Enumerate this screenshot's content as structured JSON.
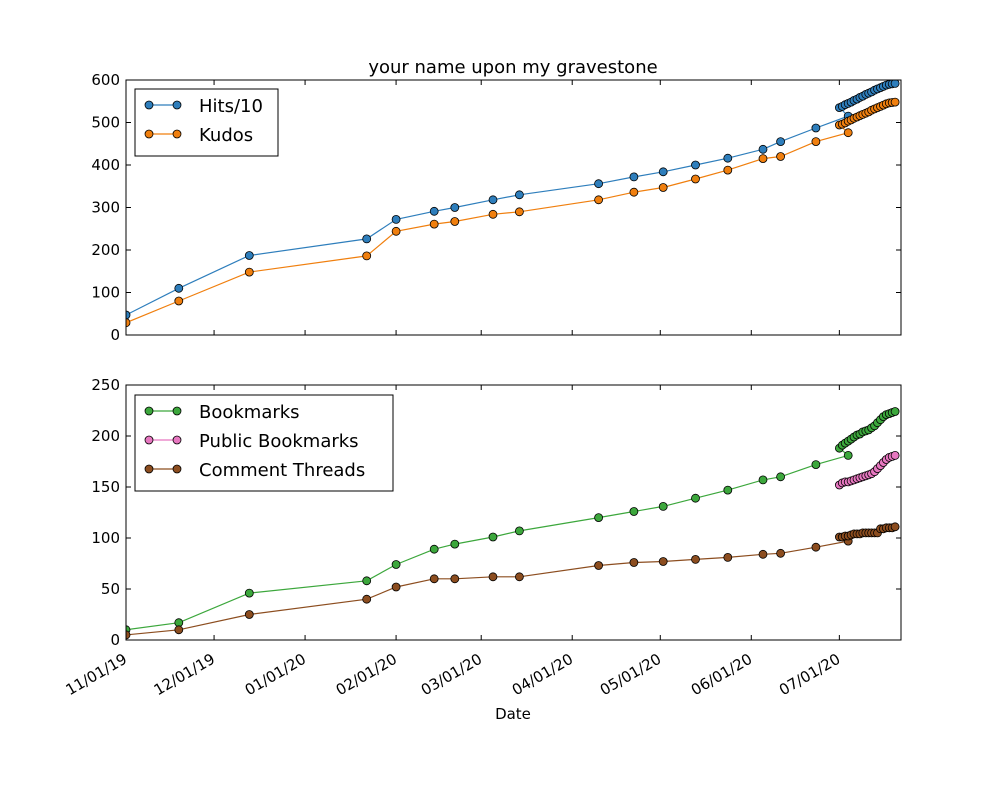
{
  "chart_data": [
    {
      "type": "line",
      "title": "your name upon my gravestone",
      "xlabel": "",
      "ylabel": "",
      "ylim": [
        0,
        600
      ],
      "yticks": [
        0,
        100,
        200,
        300,
        400,
        500,
        600
      ],
      "xlim": [
        "2019-11-01",
        "2020-07-22"
      ],
      "legend": "top-left",
      "grid": false,
      "series": [
        {
          "name": "Hits/10",
          "color": "#2e7ebc",
          "points": [
            [
              "2019-11-01",
              47
            ],
            [
              "2019-11-19",
              110
            ],
            [
              "2019-12-13",
              187
            ],
            [
              "2020-01-22",
              226
            ],
            [
              "2020-02-01",
              272
            ],
            [
              "2020-02-14",
              291
            ],
            [
              "2020-02-21",
              300
            ],
            [
              "2020-03-05",
              318
            ],
            [
              "2020-03-14",
              330
            ],
            [
              "2020-04-10",
              356
            ],
            [
              "2020-04-22",
              372
            ],
            [
              "2020-05-02",
              384
            ],
            [
              "2020-05-13",
              400
            ],
            [
              "2020-05-24",
              416
            ],
            [
              "2020-06-05",
              437
            ],
            [
              "2020-06-11",
              455
            ],
            [
              "2020-06-23",
              487
            ],
            [
              "2020-07-04",
              515
            ],
            [
              "2020-07-01",
              535
            ],
            [
              "2020-07-02",
              538
            ],
            [
              "2020-07-03",
              542
            ],
            [
              "2020-07-04",
              545
            ],
            [
              "2020-07-05",
              548
            ],
            [
              "2020-07-06",
              552
            ],
            [
              "2020-07-07",
              555
            ],
            [
              "2020-07-08",
              559
            ],
            [
              "2020-07-09",
              562
            ],
            [
              "2020-07-10",
              566
            ],
            [
              "2020-07-11",
              569
            ],
            [
              "2020-07-12",
              572
            ],
            [
              "2020-07-13",
              576
            ],
            [
              "2020-07-14",
              579
            ],
            [
              "2020-07-15",
              582
            ],
            [
              "2020-07-16",
              585
            ],
            [
              "2020-07-17",
              588
            ],
            [
              "2020-07-18",
              590
            ],
            [
              "2020-07-19",
              591
            ],
            [
              "2020-07-20",
              592
            ]
          ]
        },
        {
          "name": "Kudos",
          "color": "#f07f0e",
          "points": [
            [
              "2019-11-01",
              29
            ],
            [
              "2019-11-19",
              80
            ],
            [
              "2019-12-13",
              148
            ],
            [
              "2020-01-22",
              186
            ],
            [
              "2020-02-01",
              244
            ],
            [
              "2020-02-14",
              261
            ],
            [
              "2020-02-21",
              267
            ],
            [
              "2020-03-05",
              284
            ],
            [
              "2020-03-14",
              290
            ],
            [
              "2020-04-10",
              318
            ],
            [
              "2020-04-22",
              336
            ],
            [
              "2020-05-02",
              347
            ],
            [
              "2020-05-13",
              367
            ],
            [
              "2020-05-24",
              388
            ],
            [
              "2020-06-05",
              415
            ],
            [
              "2020-06-11",
              420
            ],
            [
              "2020-06-23",
              455
            ],
            [
              "2020-07-04",
              476
            ],
            [
              "2020-07-01",
              494
            ],
            [
              "2020-07-02",
              496
            ],
            [
              "2020-07-03",
              499
            ],
            [
              "2020-07-04",
              503
            ],
            [
              "2020-07-05",
              506
            ],
            [
              "2020-07-06",
              510
            ],
            [
              "2020-07-07",
              513
            ],
            [
              "2020-07-08",
              516
            ],
            [
              "2020-07-09",
              519
            ],
            [
              "2020-07-10",
              522
            ],
            [
              "2020-07-11",
              525
            ],
            [
              "2020-07-12",
              529
            ],
            [
              "2020-07-13",
              532
            ],
            [
              "2020-07-14",
              535
            ],
            [
              "2020-07-15",
              538
            ],
            [
              "2020-07-16",
              541
            ],
            [
              "2020-07-17",
              544
            ],
            [
              "2020-07-18",
              546
            ],
            [
              "2020-07-19",
              547
            ],
            [
              "2020-07-20",
              548
            ]
          ]
        }
      ]
    },
    {
      "type": "line",
      "title": "",
      "xlabel": "Date",
      "ylabel": "",
      "ylim": [
        0,
        250
      ],
      "yticks": [
        0,
        50,
        100,
        150,
        200,
        250
      ],
      "xlim": [
        "2019-11-01",
        "2020-07-22"
      ],
      "xticks": [
        "11/01/19",
        "12/01/19",
        "01/01/20",
        "02/01/20",
        "03/01/20",
        "04/01/20",
        "05/01/20",
        "06/01/20",
        "07/01/20"
      ],
      "legend": "top-left",
      "grid": false,
      "series": [
        {
          "name": "Bookmarks",
          "color": "#3ca73c",
          "points": [
            [
              "2019-11-01",
              10
            ],
            [
              "2019-11-19",
              17
            ],
            [
              "2019-12-13",
              46
            ],
            [
              "2020-01-22",
              58
            ],
            [
              "2020-02-01",
              74
            ],
            [
              "2020-02-14",
              89
            ],
            [
              "2020-02-21",
              94
            ],
            [
              "2020-03-05",
              101
            ],
            [
              "2020-03-14",
              107
            ],
            [
              "2020-04-10",
              120
            ],
            [
              "2020-04-22",
              126
            ],
            [
              "2020-05-02",
              131
            ],
            [
              "2020-05-13",
              139
            ],
            [
              "2020-05-24",
              147
            ],
            [
              "2020-06-05",
              157
            ],
            [
              "2020-06-11",
              160
            ],
            [
              "2020-06-23",
              172
            ],
            [
              "2020-07-04",
              181
            ],
            [
              "2020-07-01",
              188
            ],
            [
              "2020-07-02",
              191
            ],
            [
              "2020-07-03",
              193
            ],
            [
              "2020-07-04",
              195
            ],
            [
              "2020-07-05",
              197
            ],
            [
              "2020-07-06",
              199
            ],
            [
              "2020-07-07",
              201
            ],
            [
              "2020-07-08",
              202
            ],
            [
              "2020-07-09",
              204
            ],
            [
              "2020-07-10",
              205
            ],
            [
              "2020-07-11",
              206
            ],
            [
              "2020-07-12",
              208
            ],
            [
              "2020-07-13",
              210
            ],
            [
              "2020-07-14",
              213
            ],
            [
              "2020-07-15",
              216
            ],
            [
              "2020-07-16",
              219
            ],
            [
              "2020-07-17",
              221
            ],
            [
              "2020-07-18",
              222
            ],
            [
              "2020-07-19",
              223
            ],
            [
              "2020-07-20",
              224
            ]
          ]
        },
        {
          "name": "Public Bookmarks",
          "color": "#e777c0",
          "points": [
            [
              "2020-07-01",
              152
            ],
            [
              "2020-07-02",
              154
            ],
            [
              "2020-07-03",
              155
            ],
            [
              "2020-07-04",
              155
            ],
            [
              "2020-07-05",
              156
            ],
            [
              "2020-07-06",
              157
            ],
            [
              "2020-07-07",
              158
            ],
            [
              "2020-07-08",
              159
            ],
            [
              "2020-07-09",
              160
            ],
            [
              "2020-07-10",
              161
            ],
            [
              "2020-07-11",
              162
            ],
            [
              "2020-07-12",
              163
            ],
            [
              "2020-07-13",
              165
            ],
            [
              "2020-07-14",
              168
            ],
            [
              "2020-07-15",
              171
            ],
            [
              "2020-07-16",
              174
            ],
            [
              "2020-07-17",
              177
            ],
            [
              "2020-07-18",
              179
            ],
            [
              "2020-07-19",
              180
            ],
            [
              "2020-07-20",
              181
            ]
          ]
        },
        {
          "name": "Comment Threads",
          "color": "#8c4d1f",
          "points": [
            [
              "2019-11-01",
              5
            ],
            [
              "2019-11-19",
              10
            ],
            [
              "2019-12-13",
              25
            ],
            [
              "2020-01-22",
              40
            ],
            [
              "2020-02-01",
              52
            ],
            [
              "2020-02-14",
              60
            ],
            [
              "2020-02-21",
              60
            ],
            [
              "2020-03-05",
              62
            ],
            [
              "2020-03-14",
              62
            ],
            [
              "2020-04-10",
              73
            ],
            [
              "2020-04-22",
              76
            ],
            [
              "2020-05-02",
              77
            ],
            [
              "2020-05-13",
              79
            ],
            [
              "2020-05-24",
              81
            ],
            [
              "2020-06-05",
              84
            ],
            [
              "2020-06-11",
              85
            ],
            [
              "2020-06-23",
              91
            ],
            [
              "2020-07-04",
              97
            ],
            [
              "2020-07-01",
              101
            ],
            [
              "2020-07-02",
              101
            ],
            [
              "2020-07-03",
              102
            ],
            [
              "2020-07-04",
              102
            ],
            [
              "2020-07-05",
              103
            ],
            [
              "2020-07-06",
              104
            ],
            [
              "2020-07-07",
              104
            ],
            [
              "2020-07-08",
              104
            ],
            [
              "2020-07-09",
              105
            ],
            [
              "2020-07-10",
              105
            ],
            [
              "2020-07-11",
              105
            ],
            [
              "2020-07-12",
              105
            ],
            [
              "2020-07-13",
              105
            ],
            [
              "2020-07-14",
              105
            ],
            [
              "2020-07-15",
              109
            ],
            [
              "2020-07-16",
              109
            ],
            [
              "2020-07-17",
              110
            ],
            [
              "2020-07-18",
              110
            ],
            [
              "2020-07-19",
              110
            ],
            [
              "2020-07-20",
              111
            ]
          ]
        }
      ]
    }
  ]
}
